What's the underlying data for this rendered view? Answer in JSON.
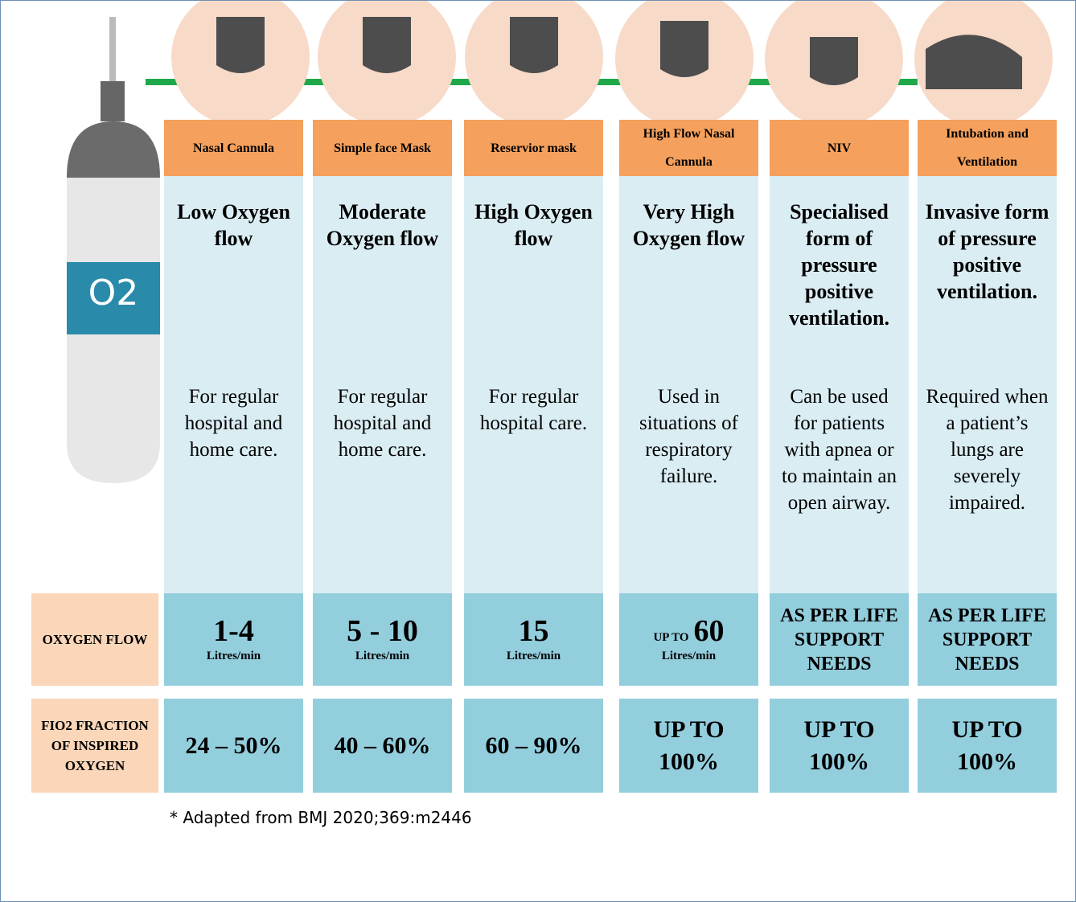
{
  "tank_label": "O2",
  "row_labels": {
    "oxygen_flow": "OXYGEN FLOW",
    "fio2": "FIO2 FRACTION OF INSPIRED OXYGEN"
  },
  "columns": [
    {
      "header": "Nasal Cannula",
      "level": "Low Oxygen flow",
      "description": "For regular hospital and home care.",
      "flow": {
        "value": "1-4",
        "unit": "Litres/min"
      },
      "fio2": "24 – 50%"
    },
    {
      "header": "Simple face Mask",
      "level": "Moderate Oxygen flow",
      "description": "For regular hospital and home care.",
      "flow": {
        "value": "5 - 10",
        "unit": "Litres/min"
      },
      "fio2": "40 – 60%"
    },
    {
      "header": "Reservior mask",
      "level": "High Oxygen flow",
      "description": "For regular hospital care.",
      "flow": {
        "value": "15",
        "unit": "Litres/min"
      },
      "fio2": "60 – 90%"
    },
    {
      "header": "High Flow Nasal Cannula",
      "level": "Very High Oxygen flow",
      "description": "Used in situations of respiratory failure.",
      "flow": {
        "prefix": "UP TO",
        "value": "60",
        "unit": "Litres/min"
      },
      "fio2": "UP TO 100%"
    },
    {
      "header": "NIV",
      "level": "Specialised form of pressure positive ventilation.",
      "description": "Can be used for patients with apnea or to maintain an open airway.",
      "flow": {
        "text": "AS PER LIFE SUPPORT NEEDS"
      },
      "fio2": "UP TO 100%"
    },
    {
      "header": "Intubation and Ventilation",
      "level": "Invasive form of pressure positive ventilation.",
      "description": "Required when a patient’s lungs are severely impaired.",
      "flow": {
        "text": "AS PER LIFE SUPPORT NEEDS"
      },
      "fio2": "UP TO 100%"
    }
  ],
  "footnote": "* Adapted from BMJ 2020;369:m2446"
}
